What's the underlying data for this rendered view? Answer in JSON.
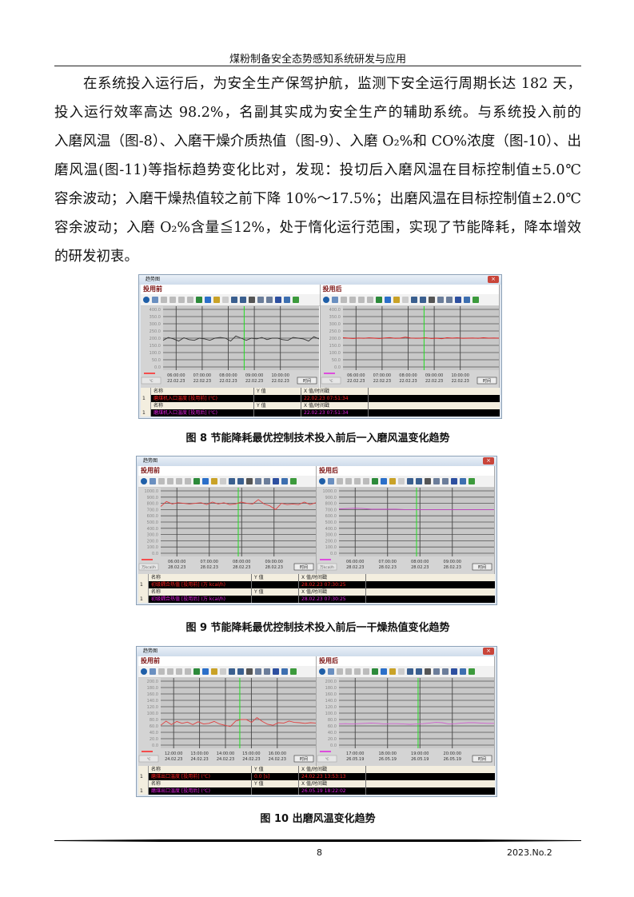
{
  "running_head": "煤粉制备安全态势感知系统研发与应用",
  "paragraph_lines": [
    "在系统投入运行后，为安全生产保驾护航，监测下安全运行周期长达 182 天，",
    "投入运行效率高达 98.2%，名副其实成为安全生产的辅助系统。与系统投入前的",
    "入磨风温（图-8）、入磨干燥介质热值（图-9）、入磨 O₂%和 CO%浓度（图-10）、出",
    "磨风温(图-11)等指标趋势变化比对，发现：投切后入磨风温在目标控制值±5.0℃",
    "容余波动；入磨干燥热值较之前下降 10%～17.5%；出磨风温在目标控制值±2.0℃",
    "容余波动；入磨 O₂%含量≦12%，处于惰化运行范围，实现了节能降耗，降本增效",
    "的研发初衷。"
  ],
  "toolbar_icons": [
    "help-icon",
    "export-icon",
    "first-icon",
    "rewind-icon",
    "forward-icon",
    "last-icon",
    "zoom-icon",
    "pan-icon",
    "scale-icon",
    "blank-icon",
    "grid-icon",
    "grid-alt-icon",
    "clock-icon",
    "chart-icon",
    "chart-alt-icon",
    "pause-icon",
    "print-icon",
    "refresh-icon"
  ],
  "toolbar_colors": [
    "#1f5fa8",
    "#6a8fc0",
    "#bbb",
    "#bbb",
    "#bbb",
    "#bbb",
    "#2c8a3a",
    "#2b6fc9",
    "#c9a227",
    "#ccc",
    "#3a5f8f",
    "#3a5f8f",
    "#555",
    "#6b7d9a",
    "#6b7d9a",
    "#2d4fa0",
    "#3d6fb0",
    "#3c9a3c"
  ],
  "window_title": "趋势图",
  "time_button": "时间",
  "table_headers": [
    "名称",
    "Y 值",
    "X 值/时间戳"
  ],
  "figures": [
    {
      "caption": "图 8  节能降耗最优控制技术投入前后一入磨风温变化趋势",
      "panels": [
        {
          "label": "投用前",
          "unit": "℃",
          "y_ticks": [
            "400.0",
            "350.0",
            "300.0",
            "250.0",
            "200.0",
            "150.0",
            "100.0",
            "50.0",
            "0.0"
          ],
          "ylim": [
            0,
            400
          ],
          "x_ticks": [
            [
              "06:00:00",
              "22.02.23"
            ],
            [
              "07:00:00",
              "22.02.23"
            ],
            [
              "08:00:00",
              "22.02.23"
            ],
            [
              "09:00:00",
              "22.02.23"
            ],
            [
              "10:00:00",
              "22.02.23"
            ]
          ],
          "color": "#333333",
          "values": [
            185,
            205,
            195,
            180,
            203,
            190,
            185,
            200,
            195,
            185,
            200,
            205,
            200,
            180,
            215,
            200,
            185,
            200,
            195,
            205,
            190,
            200,
            200,
            190,
            185,
            205,
            200,
            195,
            180,
            210,
            195
          ],
          "legend": {
            "index": "1",
            "name": "磨煤机入口温度 [投用前] (℃)",
            "y": "",
            "x": "22.02.23 07:51:34",
            "color": "#ff2020"
          }
        },
        {
          "label": "投用后",
          "unit": "℃",
          "y_ticks": [
            "400.0",
            "350.0",
            "300.0",
            "250.0",
            "200.0",
            "150.0",
            "100.0",
            "50.0",
            "0.0"
          ],
          "ylim": [
            0,
            400
          ],
          "x_ticks": [
            [
              "06:00:00",
              "22.02.23"
            ],
            [
              "07:00:00",
              "22.02.23"
            ],
            [
              "08:00:00",
              "22.02.23"
            ],
            [
              "09:00:00",
              "22.02.23"
            ],
            [
              "10:00:00",
              "22.02.23"
            ]
          ],
          "color": "#e02020",
          "values": [
            203,
            200,
            198,
            201,
            199,
            202,
            200,
            198,
            201,
            204,
            199,
            200,
            207,
            201,
            199,
            200,
            202,
            198,
            200,
            196,
            203,
            200,
            202,
            199,
            200,
            201,
            199,
            203,
            200,
            201,
            200
          ],
          "legend": {
            "index": "1",
            "name": "磨煤机入口温度 [投用后] (℃)",
            "y": "",
            "x": "22.02.23 07:51:34",
            "color": "#e020e0"
          }
        }
      ]
    },
    {
      "caption": "图 9  节能降耗最优控制技术投入前后一干燥热值变化趋势",
      "panels": [
        {
          "label": "投用前",
          "unit": "万kcal/h",
          "y_ticks": [
            "1000.0",
            "900.0",
            "800.0",
            "700.0",
            "600.0",
            "500.0",
            "400.0",
            "300.0",
            "200.0",
            "100.0",
            "0.0"
          ],
          "ylim": [
            0,
            1000
          ],
          "x_ticks": [
            [
              "06:00:00",
              "28.02.23"
            ],
            [
              "07:00:00",
              "28.02.23"
            ],
            [
              "08:00:00",
              "28.02.23"
            ],
            [
              "09:00:00",
              "28.02.23"
            ]
          ],
          "color": "#e04040",
          "values": [
            750,
            830,
            790,
            810,
            800,
            790,
            800,
            810,
            780,
            820,
            790,
            810,
            780,
            790,
            820,
            800,
            790,
            860,
            790,
            760,
            700,
            800,
            780,
            790,
            780,
            820,
            780,
            810
          ],
          "legend": {
            "index": "1",
            "name": "初级耦合热值 [投用前] (万 kcal/h)",
            "y": "",
            "x": "28.02.23 07:30:25",
            "color": "#ff2020"
          }
        },
        {
          "label": "投用后",
          "unit": "万kcal/h",
          "y_ticks": [
            "1000.0",
            "900.0",
            "800.0",
            "700.0",
            "600.0",
            "500.0",
            "400.0",
            "300.0",
            "200.0",
            "100.0",
            "0.0"
          ],
          "ylim": [
            0,
            1000
          ],
          "x_ticks": [
            [
              "06:00:00",
              "28.02.23"
            ],
            [
              "07:00:00",
              "28.02.23"
            ],
            [
              "08:00:00",
              "28.02.23"
            ],
            [
              "09:00:00",
              "28.02.23"
            ]
          ],
          "color": "#c040c0",
          "values": [
            710,
            715,
            720,
            715,
            705,
            705,
            705,
            705,
            700,
            700,
            700,
            700,
            700,
            700,
            700,
            700,
            700,
            700,
            700,
            700
          ],
          "legend": {
            "index": "1",
            "name": "初级耦合热值 [投用后] (万 kcal/h)",
            "y": "",
            "x": "28.02.23 07:30:25",
            "color": "#e020e0"
          }
        }
      ]
    },
    {
      "caption": "图 10  出磨风温变化趋势",
      "panels": [
        {
          "label": "投用前",
          "unit": "℃",
          "y_ticks": [
            "200.0",
            "180.0",
            "160.0",
            "140.0",
            "120.0",
            "100.0",
            "80.0",
            "60.0",
            "40.0",
            "20.0",
            "0.0"
          ],
          "ylim": [
            0,
            200
          ],
          "x_ticks": [
            [
              "12:00:00",
              "24.02.23"
            ],
            [
              "13:00:00",
              "24.02.23"
            ],
            [
              "14:00:00",
              "24.02.23"
            ],
            [
              "15:00:00",
              "24.02.23"
            ],
            [
              "16:00:00",
              "24.02.23"
            ]
          ],
          "color": "#e04040",
          "values": [
            62,
            75,
            64,
            74,
            68,
            72,
            64,
            73,
            66,
            68,
            74,
            66,
            62,
            58,
            75,
            80,
            80,
            71,
            86,
            74,
            65,
            62,
            70,
            69,
            75,
            71,
            70,
            68,
            70,
            69
          ],
          "legend": {
            "index": "1",
            "name": "磨煤出口温度 [投用前] (℃)",
            "y": "0.0 [s]",
            "x": "24.02.23 13:53:13",
            "color": "#ff2020"
          }
        },
        {
          "label": "投用后",
          "unit": "℃",
          "y_ticks": [
            "200.0",
            "180.0",
            "160.0",
            "140.0",
            "120.0",
            "100.0",
            "80.0",
            "60.0",
            "40.0",
            "20.0",
            "0.0"
          ],
          "ylim": [
            0,
            200
          ],
          "x_ticks": [
            [
              "17:00:00",
              "26.05.19"
            ],
            [
              "18:00:00",
              "26.05.19"
            ],
            [
              "19:00:00",
              "26.05.19"
            ],
            [
              "20:00:00",
              "26.05.19"
            ]
          ],
          "color": "#d060d0",
          "values": [
            66,
            67,
            66,
            67,
            68,
            69,
            68,
            66,
            67,
            67,
            66,
            65,
            66,
            67,
            69,
            71,
            70,
            66,
            67,
            69,
            70,
            70,
            69,
            68,
            68
          ],
          "legend": {
            "index": "1",
            "name": "磨煤出口温度 [投用后] (℃)",
            "y": "",
            "x": "26.05.19 18:22:02",
            "color": "#e020e0"
          }
        }
      ]
    }
  ],
  "footer": {
    "page": "8",
    "issue": "2023.No.2"
  }
}
